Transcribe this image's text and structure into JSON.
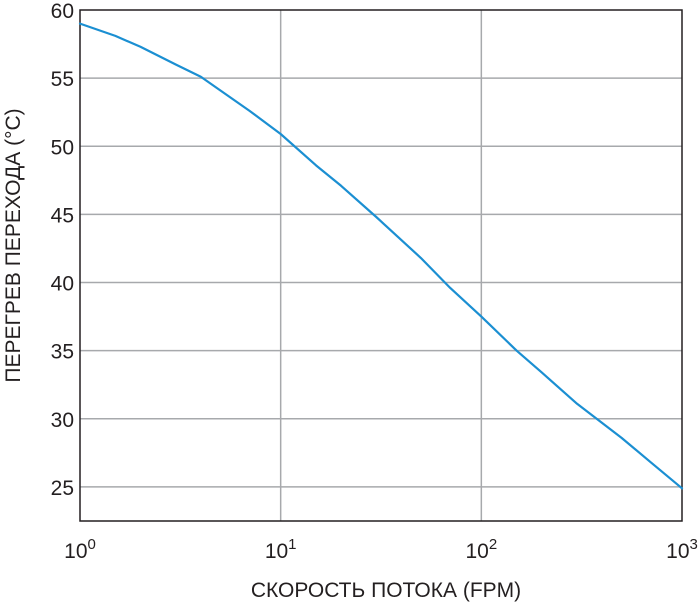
{
  "chart_data": {
    "type": "line",
    "title": "",
    "xlabel": "СКОРОСТЬ ПОТОКА (FPM)",
    "ylabel": "ПЕРЕГРЕВ ПЕРЕХОДА (°C)",
    "x_scale": "log",
    "xlim": [
      1,
      1000
    ],
    "ylim": [
      22.5,
      60
    ],
    "grid": true,
    "x_ticks": [
      {
        "value": 1,
        "base": "10",
        "exp": "0"
      },
      {
        "value": 10,
        "base": "10",
        "exp": "1"
      },
      {
        "value": 100,
        "base": "10",
        "exp": "2"
      },
      {
        "value": 1000,
        "base": "10",
        "exp": "3"
      }
    ],
    "y_ticks": [
      25,
      30,
      35,
      40,
      45,
      50,
      55,
      60
    ],
    "series": [
      {
        "color": "#1b8fd2",
        "x": [
          1,
          1.5,
          2,
          3,
          4,
          5,
          7,
          10,
          15,
          20,
          30,
          50,
          70,
          100,
          150,
          200,
          300,
          500,
          700,
          1000
        ],
        "y": [
          59.0,
          58.1,
          57.3,
          56.0,
          55.1,
          54.1,
          52.6,
          50.9,
          48.6,
          47.1,
          44.8,
          41.8,
          39.6,
          37.5,
          35.0,
          33.4,
          31.1,
          28.6,
          26.8,
          24.9
        ]
      }
    ]
  }
}
